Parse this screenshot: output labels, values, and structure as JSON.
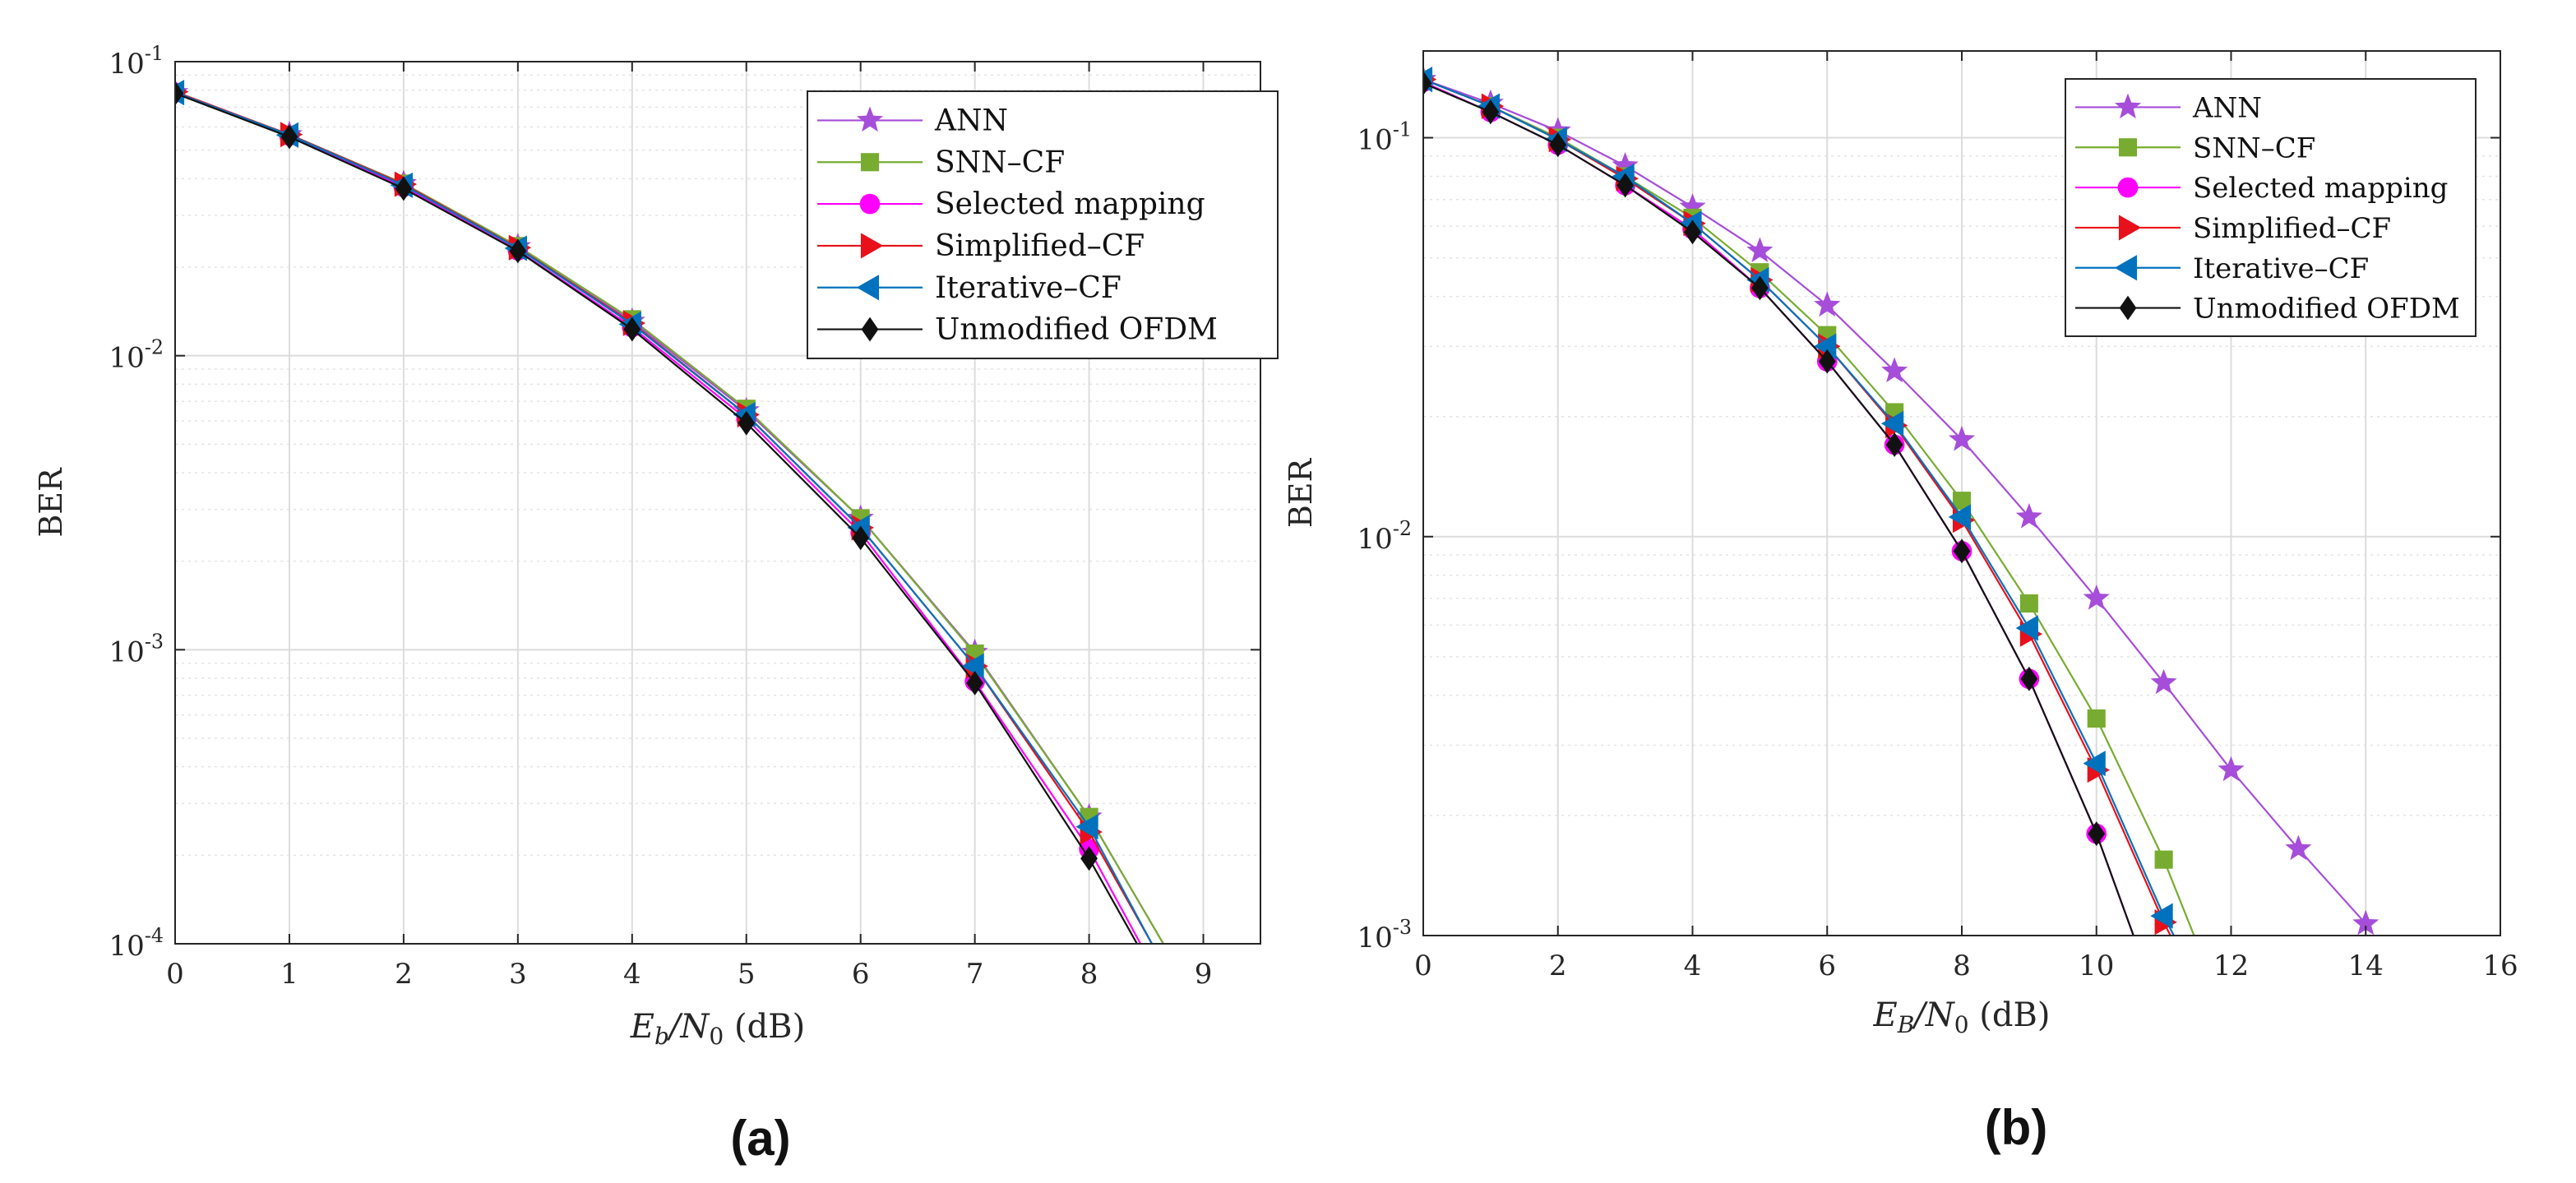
{
  "chart_data": [
    {
      "panel": "(a)",
      "type": "line",
      "xscale": "linear",
      "yscale": "log",
      "xlabel_main": "E",
      "xlabel_sub1": "b",
      "xlabel_slash": "/N",
      "xlabel_sub2": "0",
      "xlabel_unit": "(dB)",
      "ylabel": "BER",
      "xlim": [
        0,
        9.5
      ],
      "ylim": [
        0.0001,
        0.1
      ],
      "xticks": [
        "0",
        "1",
        "2",
        "3",
        "4",
        "5",
        "6",
        "7",
        "8",
        "9"
      ],
      "xtick_values": [
        0,
        1,
        2,
        3,
        4,
        5,
        6,
        7,
        8,
        9
      ],
      "ytick_values": [
        0.1,
        0.01,
        0.001,
        0.0001
      ],
      "ytick_exponents": [
        "-1",
        "-2",
        "-3",
        "-4"
      ],
      "ytick_base": "10",
      "grid": true,
      "legend_position": "top-right",
      "series": [
        {
          "name": "ANN",
          "color": "#a64dd9",
          "marker": "star",
          "x": [
            0,
            1,
            2,
            3,
            4,
            5,
            6,
            7,
            8,
            8.65
          ],
          "y": [
            0.0785,
            0.0565,
            0.0385,
            0.0235,
            0.0131,
            0.0065,
            0.0028,
            0.00098,
            0.00027,
            0.0001
          ]
        },
        {
          "name": "SNN–CF",
          "color": "#77ac30",
          "marker": "square",
          "x": [
            0,
            1,
            2,
            3,
            4,
            5,
            6,
            7,
            8,
            8.65
          ],
          "y": [
            0.0785,
            0.0565,
            0.0385,
            0.0236,
            0.0133,
            0.0066,
            0.0028,
            0.00097,
            0.00027,
            0.0001
          ]
        },
        {
          "name": "Selected mapping",
          "color": "#ff00ff",
          "marker": "circle",
          "x": [
            0,
            1,
            2,
            3,
            4,
            5,
            6,
            7,
            8,
            8.45
          ],
          "y": [
            0.0785,
            0.056,
            0.0375,
            0.0228,
            0.0125,
            0.0061,
            0.0025,
            0.00078,
            0.00021,
            0.0001
          ]
        },
        {
          "name": "Simplified–CF",
          "color": "#e8101a",
          "marker": "triangle-right",
          "x": [
            0,
            1,
            2,
            3,
            4,
            5,
            6,
            7,
            8,
            8.55
          ],
          "y": [
            0.079,
            0.0565,
            0.0383,
            0.0233,
            0.0129,
            0.0063,
            0.0026,
            0.00088,
            0.00024,
            0.0001
          ]
        },
        {
          "name": "Iterative–CF",
          "color": "#0072bd",
          "marker": "triangle-left",
          "x": [
            0,
            1,
            2,
            3,
            4,
            5,
            6,
            7,
            8,
            8.55
          ],
          "y": [
            0.0785,
            0.0563,
            0.038,
            0.0232,
            0.0128,
            0.0063,
            0.0026,
            0.00088,
            0.00025,
            0.0001
          ]
        },
        {
          "name": "Unmodified OFDM",
          "color": "#111111",
          "marker": "diamond",
          "x": [
            0,
            1,
            2,
            3,
            4,
            5,
            6,
            7,
            8,
            8.42
          ],
          "y": [
            0.078,
            0.0555,
            0.037,
            0.0227,
            0.0123,
            0.0059,
            0.0024,
            0.00077,
            0.000195,
            0.0001
          ]
        }
      ]
    },
    {
      "panel": "(b)",
      "type": "line",
      "xscale": "linear",
      "yscale": "log",
      "xlabel_main": "E",
      "xlabel_sub1": "B",
      "xlabel_slash": "/N",
      "xlabel_sub2": "0",
      "xlabel_unit": "(dB)",
      "ylabel": "BER",
      "xlim": [
        0,
        16
      ],
      "ylim": [
        0.001,
        0.165
      ],
      "xticks": [
        "0",
        "2",
        "4",
        "6",
        "8",
        "10",
        "12",
        "14",
        "16"
      ],
      "xtick_values": [
        0,
        2,
        4,
        6,
        8,
        10,
        12,
        14,
        16
      ],
      "ytick_values": [
        0.1,
        0.01,
        0.001
      ],
      "ytick_exponents": [
        "-1",
        "-2",
        "-3"
      ],
      "ytick_base": "10",
      "grid": true,
      "legend_position": "top-right",
      "series": [
        {
          "name": "ANN",
          "color": "#a64dd9",
          "marker": "star",
          "x": [
            0,
            1,
            2,
            3,
            4,
            5,
            6,
            7,
            8,
            9,
            10,
            11,
            12,
            13,
            14
          ],
          "y": [
            0.14,
            0.122,
            0.104,
            0.085,
            0.067,
            0.052,
            0.038,
            0.026,
            0.0175,
            0.0112,
            0.007,
            0.0043,
            0.0026,
            0.00165,
            0.00107
          ]
        },
        {
          "name": "SNN–CF",
          "color": "#77ac30",
          "marker": "square",
          "x": [
            0,
            1,
            2,
            3,
            4,
            5,
            6,
            7,
            8,
            9,
            10,
            11,
            11.45
          ],
          "y": [
            0.14,
            0.12,
            0.1,
            0.08,
            0.063,
            0.046,
            0.032,
            0.0205,
            0.0123,
            0.0068,
            0.0035,
            0.00155,
            0.001
          ]
        },
        {
          "name": "Selected mapping",
          "color": "#ff00ff",
          "marker": "circle",
          "x": [
            0,
            1,
            2,
            3,
            4,
            5,
            6,
            7,
            8,
            9,
            10,
            10.55
          ],
          "y": [
            0.138,
            0.116,
            0.096,
            0.076,
            0.059,
            0.042,
            0.0275,
            0.017,
            0.0092,
            0.0044,
            0.0018,
            0.001
          ]
        },
        {
          "name": "Simplified–CF",
          "color": "#e8101a",
          "marker": "triangle-right",
          "x": [
            0,
            1,
            2,
            3,
            4,
            5,
            6,
            7,
            8,
            9,
            10,
            11,
            11.1
          ],
          "y": [
            0.14,
            0.12,
            0.099,
            0.079,
            0.061,
            0.044,
            0.03,
            0.019,
            0.011,
            0.0057,
            0.0026,
            0.00108,
            0.001
          ]
        },
        {
          "name": "Iterative–CF",
          "color": "#0072bd",
          "marker": "triangle-left",
          "x": [
            0,
            1,
            2,
            3,
            4,
            5,
            6,
            7,
            8,
            9,
            10,
            11,
            11.15
          ],
          "y": [
            0.14,
            0.12,
            0.099,
            0.08,
            0.061,
            0.044,
            0.03,
            0.0192,
            0.0112,
            0.0059,
            0.0027,
            0.00112,
            0.001
          ]
        },
        {
          "name": "Unmodified OFDM",
          "color": "#111111",
          "marker": "diamond",
          "x": [
            0,
            1,
            2,
            3,
            4,
            5,
            6,
            7,
            8,
            9,
            10,
            10.55
          ],
          "y": [
            0.137,
            0.116,
            0.096,
            0.076,
            0.058,
            0.042,
            0.0275,
            0.017,
            0.0092,
            0.0044,
            0.0018,
            0.001
          ]
        }
      ]
    }
  ]
}
